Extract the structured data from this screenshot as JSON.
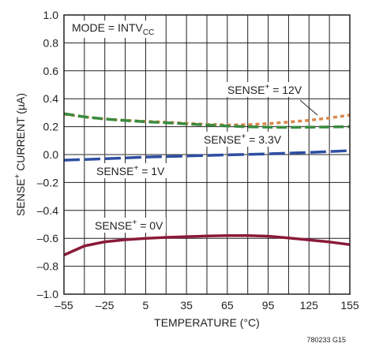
{
  "chart_data": {
    "type": "line",
    "title": "",
    "xlabel": "TEMPERATURE (°C)",
    "ylabel": {
      "base": "SENSE",
      "sup": "+",
      "rest": " CURRENT (µA)"
    },
    "xlim": [
      -55,
      155
    ],
    "ylim": [
      -1.0,
      1.0
    ],
    "x_ticks": [
      -55,
      -25,
      5,
      35,
      65,
      95,
      125,
      155
    ],
    "x_tick_labels": [
      "–55",
      "–25",
      "5",
      "35",
      "65",
      "95",
      "125",
      "155"
    ],
    "y_ticks": [
      -1.0,
      -0.8,
      -0.6,
      -0.4,
      -0.2,
      0.0,
      0.2,
      0.4,
      0.6,
      0.8,
      1.0
    ],
    "y_tick_labels": [
      "–1.0",
      "–0.8",
      "–0.6",
      "–0.4",
      "–0.2",
      "0.0",
      "0.2",
      "0.4",
      "0.6",
      "0.8",
      "1.0"
    ],
    "x_minor_step": 15,
    "grid": true,
    "mode_label": {
      "base": "MODE = INTV",
      "sub": "CC"
    },
    "figure_id": "780233 G15",
    "series": [
      {
        "name": "SENSE+ = 12V",
        "label": {
          "base": "SENSE",
          "sup": "+",
          "rest": " = 12V"
        },
        "color": "#d9874a",
        "dash": "5,4",
        "x": [
          -55,
          -40,
          -25,
          -10,
          5,
          20,
          35,
          50,
          65,
          80,
          95,
          110,
          125,
          140,
          155
        ],
        "y": [
          0.29,
          0.27,
          0.255,
          0.245,
          0.238,
          0.232,
          0.224,
          0.217,
          0.212,
          0.214,
          0.222,
          0.233,
          0.245,
          0.262,
          0.283
        ]
      },
      {
        "name": "SENSE+ = 3.3V",
        "label": {
          "base": "SENSE",
          "sup": "+",
          "rest": " = 3.3V"
        },
        "color": "#3a8a3f",
        "dash": "13,5",
        "x": [
          -55,
          -40,
          -25,
          -10,
          5,
          20,
          35,
          50,
          65,
          80,
          95,
          110,
          125,
          140,
          155
        ],
        "y": [
          0.293,
          0.27,
          0.255,
          0.244,
          0.235,
          0.228,
          0.22,
          0.212,
          0.205,
          0.199,
          0.196,
          0.195,
          0.196,
          0.198,
          0.2
        ]
      },
      {
        "name": "SENSE+ = 1V",
        "label": {
          "base": "SENSE",
          "sup": "+",
          "rest": " = 1V"
        },
        "color": "#2e4ea3",
        "dash": "20,6",
        "x": [
          -55,
          -25,
          5,
          35,
          65,
          95,
          125,
          155
        ],
        "y": [
          -0.04,
          -0.03,
          -0.018,
          -0.01,
          -0.002,
          0.005,
          0.015,
          0.028
        ]
      },
      {
        "name": "SENSE+ = 0V",
        "label": {
          "base": "SENSE",
          "sup": "+",
          "rest": " = 0V"
        },
        "color": "#8b1a3a",
        "dash": "",
        "x": [
          -55,
          -40,
          -25,
          -10,
          5,
          20,
          35,
          50,
          65,
          80,
          95,
          110,
          125,
          140,
          155
        ],
        "y": [
          -0.72,
          -0.655,
          -0.625,
          -0.61,
          -0.6,
          -0.593,
          -0.588,
          -0.583,
          -0.58,
          -0.58,
          -0.585,
          -0.597,
          -0.612,
          -0.626,
          -0.645
        ]
      }
    ]
  }
}
